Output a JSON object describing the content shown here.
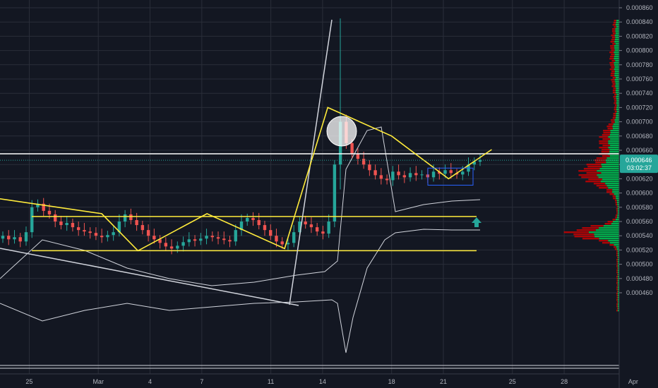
{
  "chart_data": {
    "type": "candlestick",
    "title": "",
    "xlabel": "",
    "ylabel": "",
    "ylim": [
      0.00045,
      0.00086
    ],
    "y_ticks": [
      "0.000860",
      "0.000840",
      "0.000820",
      "0.000800",
      "0.000780",
      "0.000760",
      "0.000740",
      "0.000720",
      "0.000700",
      "0.000680",
      "0.000660",
      "0.000640",
      "0.000620",
      "0.000600",
      "0.000580",
      "0.000560",
      "0.000540",
      "0.000520",
      "0.000500",
      "0.000480",
      "0.000460"
    ],
    "x_ticks": [
      {
        "label": "25",
        "day": 25
      },
      {
        "label": "Mar",
        "day": 29
      },
      {
        "label": "4",
        "day": 32
      },
      {
        "label": "7",
        "day": 35
      },
      {
        "label": "11",
        "day": 39
      },
      {
        "label": "14",
        "day": 42
      },
      {
        "label": "18",
        "day": 46
      },
      {
        "label": "21",
        "day": 49
      },
      {
        "label": "25",
        "day": 53
      },
      {
        "label": "28",
        "day": 56
      },
      {
        "label": "Apr",
        "day": 60
      }
    ],
    "last_price": "0.000646",
    "countdown": "03:02:37",
    "colors": {
      "background": "#131722",
      "grid": "#2a2e39",
      "up": "#26a69a",
      "down": "#ef5350",
      "pattern": "#ffeb3b",
      "trendline": "#d1d4dc",
      "badge": "#26a69a",
      "volume_profile_up": "#00c853",
      "volume_profile_down": "#d50000"
    },
    "horizontal_levels": [
      {
        "name": "resistance-white",
        "value": 0.000655,
        "color": "#ffffff"
      },
      {
        "name": "range-top",
        "value": 0.000567,
        "color": "#ffeb3b"
      },
      {
        "name": "range-bottom",
        "value": 0.000519,
        "color": "#ffeb3b"
      }
    ],
    "zigzag": [
      [
        21,
        0.0006
      ],
      [
        29.2,
        0.000571
      ],
      [
        31.3,
        0.000519
      ],
      [
        35.3,
        0.000571
      ],
      [
        39.8,
        0.000522
      ],
      [
        42.3,
        0.00072
      ],
      [
        46,
        0.00068
      ],
      [
        49.3,
        0.00062
      ],
      [
        51.8,
        0.000661
      ]
    ],
    "candles_close": [
      0.00054,
      0.000535,
      0.000538,
      0.000532,
      0.000545,
      0.00058,
      0.000585,
      0.000575,
      0.00057,
      0.00056,
      0.000555,
      0.000558,
      0.000552,
      0.000548,
      0.000546,
      0.000544,
      0.00054,
      0.000538,
      0.000541,
      0.000545,
      0.00056,
      0.00057,
      0.000562,
      0.000555,
      0.000548,
      0.00054,
      0.000535,
      0.00053,
      0.000525,
      0.000522,
      0.000526,
      0.000531,
      0.000535,
      0.000533,
      0.000536,
      0.00054,
      0.000538,
      0.000536,
      0.000534,
      0.000532,
      0.000548,
      0.00056,
      0.000565,
      0.000562,
      0.000555,
      0.000548,
      0.00054,
      0.000532,
      0.000528,
      0.00053,
      0.000545,
      0.00056,
      0.000556,
      0.000552,
      0.000546,
      0.000543,
      0.00056,
      0.00064,
      0.0007,
      0.00067,
      0.000655,
      0.000648,
      0.00064,
      0.000632,
      0.000625,
      0.00062,
      0.000618,
      0.00063,
      0.000625,
      0.000622,
      0.000628,
      0.000625,
      0.000626,
      0.000622,
      0.00063,
      0.000627,
      0.000632,
      0.000628,
      0.000626,
      0.00063,
      0.00064,
      0.000644,
      0.000646
    ]
  }
}
